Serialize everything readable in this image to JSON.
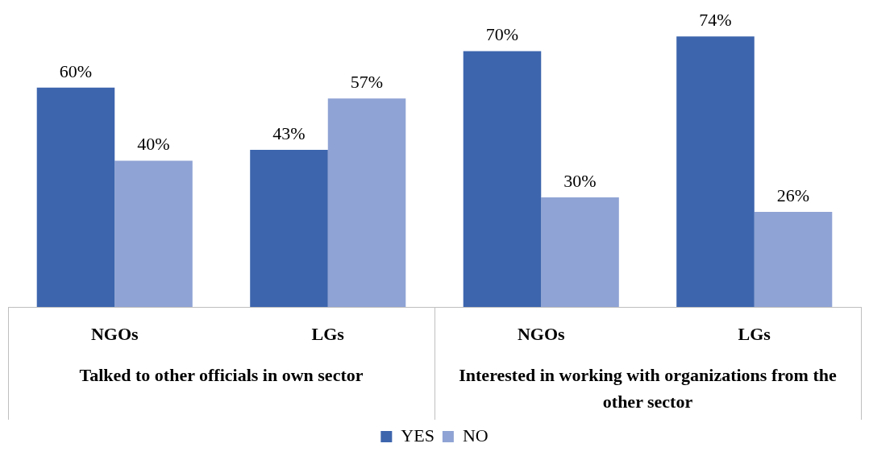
{
  "chart_data": {
    "type": "bar",
    "categories": [
      "NGOs",
      "LGs",
      "NGOs",
      "LGs"
    ],
    "series": [
      {
        "name": "YES",
        "color": "#3d65ad",
        "values": [
          60,
          43,
          70,
          74
        ],
        "value_labels": [
          "60%",
          "43%",
          "70%",
          "74%"
        ]
      },
      {
        "name": "NO",
        "color": "#8fa3d4",
        "values": [
          40,
          57,
          30,
          26
        ],
        "value_labels": [
          "40%",
          "57%",
          "30%",
          "26%"
        ]
      }
    ],
    "annotations": [
      "Talked to other officials in own sector",
      "Interested in working with organizations from the other sector"
    ],
    "tick_labels": "x",
    "grid": false,
    "legend": "bottom"
  }
}
